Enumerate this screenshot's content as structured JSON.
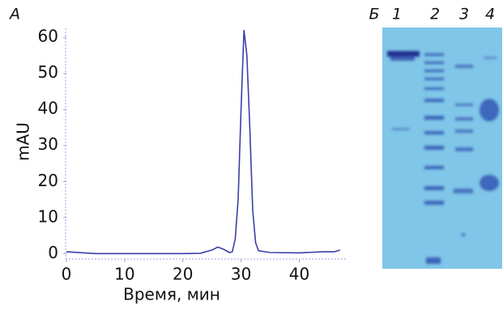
{
  "chart_data": {
    "type": "line",
    "panel_label": "А",
    "x_label": "Время, мин",
    "y_label": "mAU",
    "x": [
      0,
      5,
      10,
      15,
      20,
      23,
      25,
      26,
      27,
      28,
      28.5,
      29,
      29.5,
      30,
      30.5,
      31,
      31.5,
      32,
      32.5,
      33,
      35,
      40,
      44,
      46,
      47
    ],
    "series": [
      {
        "color": "#3a3fa8",
        "values": [
          0.5,
          0,
          0,
          0,
          0,
          0.1,
          1,
          1.8,
          1.2,
          0.3,
          0.5,
          4,
          15,
          40,
          62,
          55,
          35,
          12,
          3,
          0.8,
          0.3,
          0.2,
          0.5,
          0.5,
          1
        ]
      }
    ],
    "xlim": [
      0,
      48
    ],
    "ylim": [
      -1.5,
      62.5
    ],
    "xticks": [
      0,
      10,
      20,
      30,
      40
    ],
    "yticks": [
      0,
      10,
      20,
      30,
      40,
      50,
      60
    ]
  },
  "gel": {
    "panel_label": "Б",
    "lanes": [
      "1",
      "2",
      "3",
      "4"
    ]
  }
}
